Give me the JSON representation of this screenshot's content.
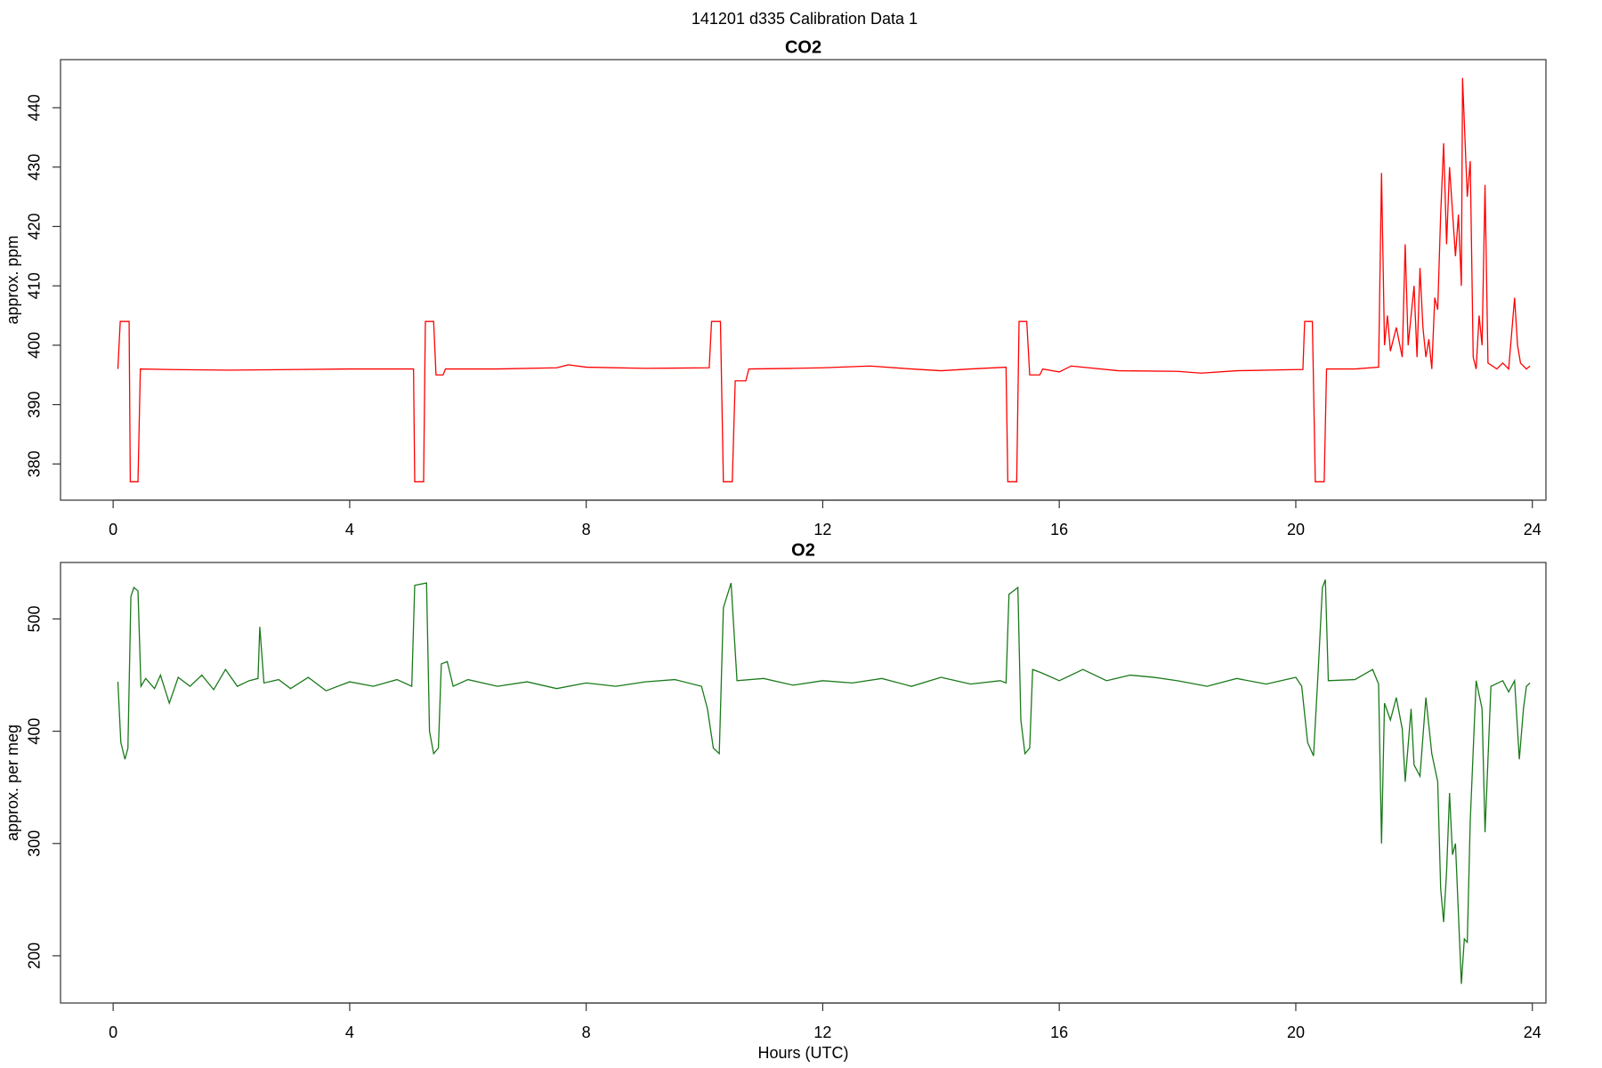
{
  "suptitle": "141201   d335   Calibration Data 1",
  "chart_data": [
    {
      "type": "line",
      "title": "CO2",
      "ylabel": "approx. ppm",
      "color": "#ff0000",
      "xlim": [
        -0.89,
        24.23
      ],
      "xticks": [
        0,
        4,
        8,
        12,
        16,
        20,
        24
      ],
      "ylim": [
        373.9,
        448.1
      ],
      "yticks": [
        380,
        390,
        400,
        410,
        420,
        430,
        440
      ],
      "x": [
        0.08,
        0.12,
        0.27,
        0.29,
        0.42,
        0.46,
        1,
        2,
        3,
        4,
        5.08,
        5.1,
        5.25,
        5.28,
        5.42,
        5.46,
        5.58,
        5.62,
        6.5,
        7.5,
        7.7,
        8,
        9,
        10.08,
        10.12,
        10.27,
        10.32,
        10.47,
        10.52,
        10.7,
        10.75,
        11.5,
        12,
        12.8,
        13.5,
        14,
        14.5,
        15.1,
        15.13,
        15.28,
        15.32,
        15.45,
        15.5,
        15.67,
        15.72,
        16,
        16.2,
        17,
        18,
        18.4,
        19,
        20,
        20.12,
        20.15,
        20.28,
        20.33,
        20.48,
        20.52,
        21,
        21.4,
        21.45,
        21.5,
        21.55,
        21.6,
        21.7,
        21.8,
        21.85,
        21.9,
        22,
        22.05,
        22.1,
        22.15,
        22.2,
        22.25,
        22.3,
        22.35,
        22.4,
        22.45,
        22.5,
        22.55,
        22.6,
        22.7,
        22.75,
        22.8,
        22.82,
        22.9,
        22.95,
        23,
        23.05,
        23.1,
        23.15,
        23.2,
        23.25,
        23.4,
        23.5,
        23.6,
        23.7,
        23.75,
        23.8,
        23.9,
        23.96
      ],
      "values": [
        396,
        404,
        404,
        377,
        377,
        396,
        395.9,
        395.8,
        395.9,
        396,
        396,
        377,
        377,
        404,
        404,
        395,
        395,
        396,
        396,
        396.2,
        396.7,
        396.3,
        396.1,
        396.2,
        404,
        404,
        377,
        377,
        394,
        394,
        396,
        396.1,
        396.2,
        396.5,
        396,
        395.7,
        396,
        396.3,
        377,
        377,
        404,
        404,
        395,
        395,
        396,
        395.5,
        396.5,
        395.7,
        395.6,
        395.3,
        395.7,
        395.9,
        395.9,
        404,
        404,
        377,
        377,
        396,
        396,
        396.3,
        429,
        400,
        405,
        399,
        403,
        398,
        417,
        400,
        410,
        398,
        413,
        403,
        398,
        401,
        396,
        408,
        406,
        422,
        434,
        417,
        430,
        415,
        422,
        410,
        445,
        425,
        431,
        398,
        396,
        405,
        400,
        427,
        397,
        396,
        397,
        396,
        408,
        400,
        397,
        396,
        396.5
      ]
    },
    {
      "type": "line",
      "title": "O2",
      "ylabel": "approx. per meg",
      "xlabel": "Hours (UTC)",
      "color": "#1a7a1a",
      "xlim": [
        -0.89,
        24.23
      ],
      "xticks": [
        0,
        4,
        8,
        12,
        16,
        20,
        24
      ],
      "ylim": [
        157.9,
        550.3
      ],
      "yticks": [
        200,
        300,
        400,
        500
      ],
      "x": [
        0.08,
        0.13,
        0.2,
        0.25,
        0.3,
        0.35,
        0.42,
        0.47,
        0.55,
        0.7,
        0.8,
        0.95,
        1.1,
        1.3,
        1.5,
        1.7,
        1.9,
        2.1,
        2.3,
        2.45,
        2.48,
        2.55,
        2.8,
        3,
        3.3,
        3.6,
        4,
        4.4,
        4.8,
        5.05,
        5.1,
        5.3,
        5.35,
        5.42,
        5.5,
        5.55,
        5.65,
        5.75,
        6,
        6.5,
        7,
        7.5,
        8,
        8.5,
        9,
        9.5,
        9.95,
        10.05,
        10.15,
        10.25,
        10.32,
        10.45,
        10.55,
        11,
        11.5,
        12,
        12.5,
        13,
        13.5,
        14,
        14.5,
        15,
        15.1,
        15.15,
        15.3,
        15.35,
        15.42,
        15.5,
        15.55,
        15.7,
        16,
        16.4,
        16.8,
        17.2,
        17.6,
        18,
        18.5,
        19,
        19.5,
        20,
        20.1,
        20.2,
        20.3,
        20.38,
        20.45,
        20.5,
        20.55,
        21,
        21.3,
        21.4,
        21.45,
        21.5,
        21.6,
        21.7,
        21.8,
        21.85,
        21.95,
        22,
        22.1,
        22.2,
        22.3,
        22.4,
        22.45,
        22.5,
        22.55,
        22.6,
        22.65,
        22.7,
        22.8,
        22.85,
        22.9,
        22.95,
        23.05,
        23.15,
        23.2,
        23.3,
        23.5,
        23.6,
        23.7,
        23.78,
        23.85,
        23.9,
        23.96
      ],
      "values": [
        444,
        390,
        375,
        385,
        520,
        528,
        525,
        440,
        447,
        438,
        450,
        425,
        448,
        440,
        450,
        437,
        455,
        440,
        445,
        447,
        493,
        443,
        446,
        438,
        448,
        436,
        444,
        440,
        446,
        440,
        530,
        532,
        400,
        380,
        385,
        460,
        462,
        440,
        446,
        440,
        444,
        438,
        443,
        440,
        444,
        446,
        440,
        420,
        385,
        380,
        510,
        532,
        445,
        447,
        441,
        445,
        443,
        447,
        440,
        448,
        442,
        445,
        443,
        522,
        528,
        410,
        380,
        385,
        455,
        452,
        445,
        455,
        445,
        450,
        448,
        445,
        440,
        447,
        442,
        448,
        440,
        390,
        378,
        455,
        528,
        535,
        445,
        446,
        455,
        442,
        300,
        425,
        410,
        430,
        402,
        355,
        420,
        370,
        360,
        430,
        380,
        355,
        260,
        230,
        275,
        345,
        290,
        300,
        175,
        215,
        212,
        320,
        445,
        420,
        310,
        440,
        445,
        435,
        445,
        375,
        420,
        440,
        443
      ]
    }
  ]
}
